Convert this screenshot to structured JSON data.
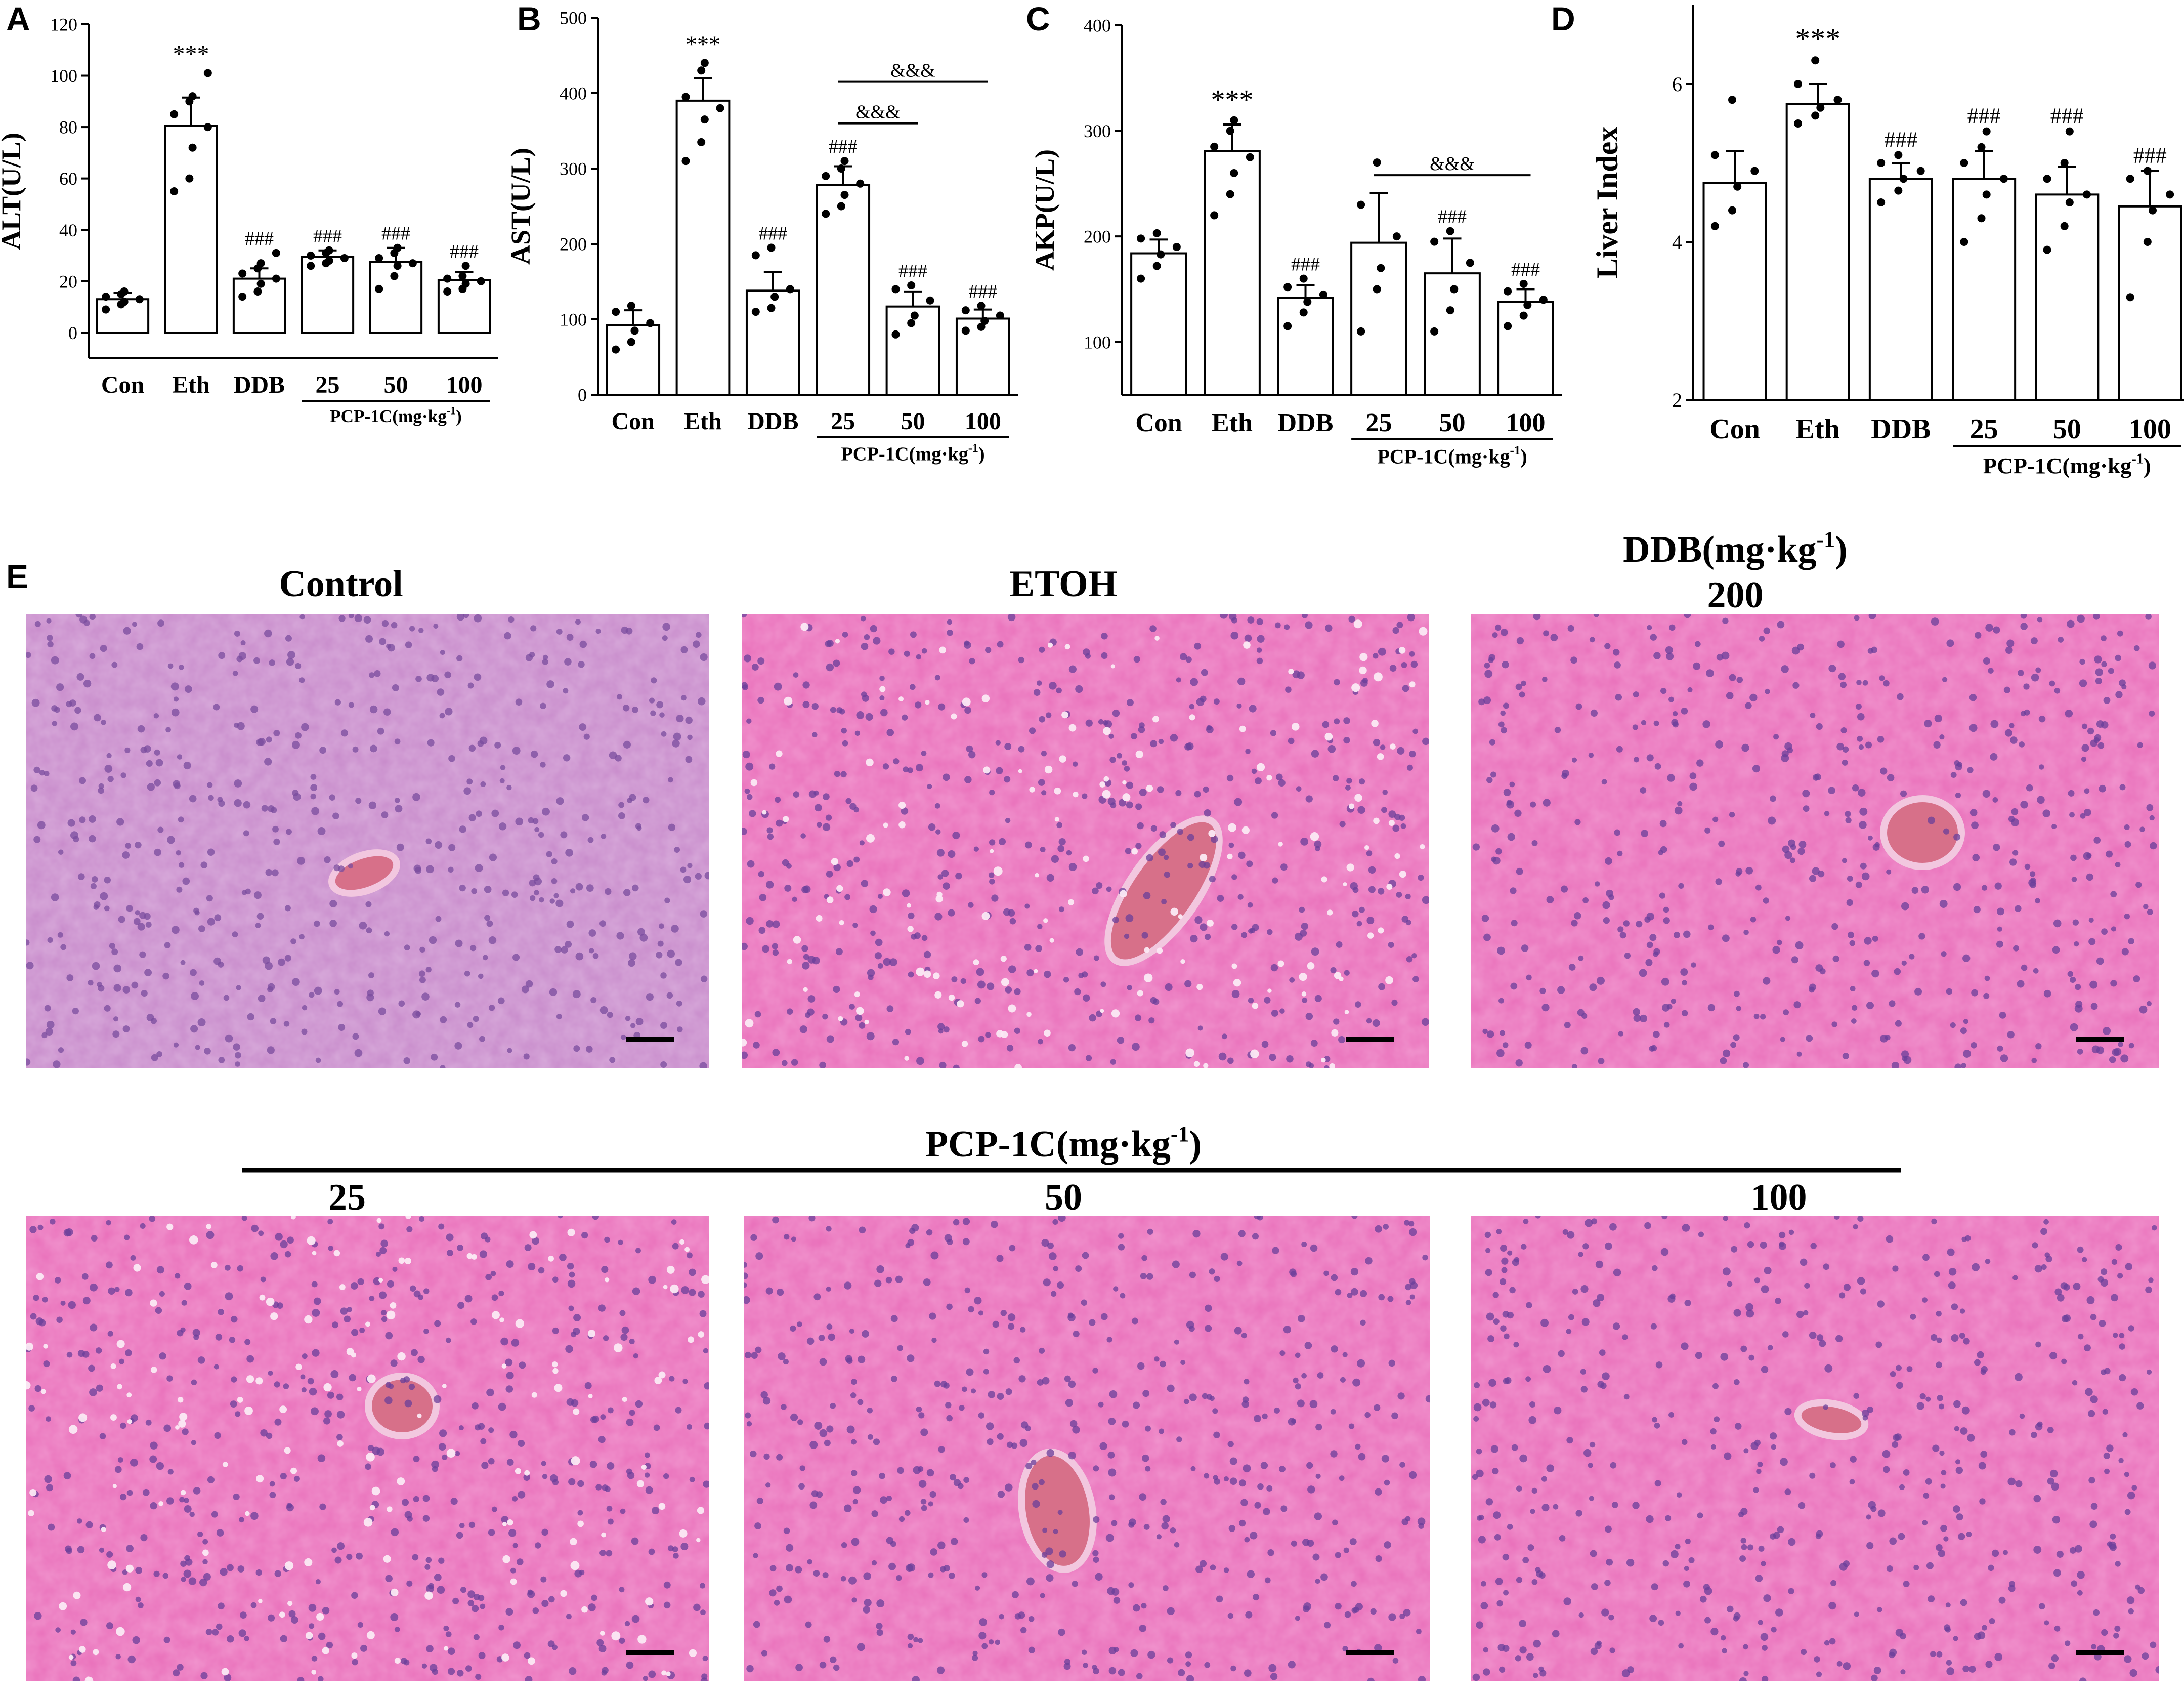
{
  "colors": {
    "bar_fill": "#ffffff",
    "stroke": "#000000",
    "he_pink": "#e96fba",
    "he_lilac": "#c88bcb",
    "nucleus": "#6a3f9a",
    "congestion": "#d2607a"
  },
  "chart_data": [
    {
      "panel": "A",
      "type": "bar",
      "ylabel": "ALT(U/L)",
      "ylim": [
        -10,
        120
      ],
      "yticks": [
        0,
        20,
        40,
        60,
        80,
        100,
        120
      ],
      "categories": [
        "Con",
        "Eth",
        "DDB",
        "25",
        "50",
        "100"
      ],
      "group_label": "PCP-1C(mg·kg",
      "group_label_sup": "-1",
      "group_label_end": ")",
      "values": [
        13,
        80.5,
        21,
        29.5,
        27.5,
        20.5
      ],
      "errors": [
        2.5,
        11,
        4,
        2.5,
        5.5,
        3
      ],
      "points": [
        [
          9,
          11,
          12,
          13,
          14,
          15,
          16
        ],
        [
          55,
          60,
          72,
          80,
          85,
          90,
          92,
          101
        ],
        [
          14,
          16,
          19,
          21,
          23,
          25,
          27,
          31
        ],
        [
          26,
          27,
          28,
          29,
          30,
          31,
          32
        ],
        [
          17,
          22,
          26,
          27,
          29,
          31,
          33
        ],
        [
          16,
          17,
          19,
          20,
          21,
          22,
          26
        ]
      ],
      "annotations": [
        {
          "category": 1,
          "text": "***"
        },
        {
          "category": 2,
          "text": "###"
        },
        {
          "category": 3,
          "text": "###"
        },
        {
          "category": 4,
          "text": "###"
        },
        {
          "category": 5,
          "text": "###"
        }
      ],
      "brackets": []
    },
    {
      "panel": "B",
      "type": "bar",
      "ylabel": "AST(U/L)",
      "ylim": [
        0,
        500
      ],
      "yticks": [
        0,
        100,
        200,
        300,
        400,
        500
      ],
      "categories": [
        "Con",
        "Eth",
        "DDB",
        "25",
        "50",
        "100"
      ],
      "group_label": "PCP-1C(mg·kg",
      "group_label_sup": "-1",
      "group_label_end": ")",
      "values": [
        92,
        390,
        138,
        278,
        117,
        101
      ],
      "errors": [
        20,
        30,
        25,
        25,
        20,
        12
      ],
      "points": [
        [
          60,
          70,
          85,
          95,
          110,
          118
        ],
        [
          310,
          335,
          365,
          380,
          395,
          430,
          440
        ],
        [
          110,
          115,
          130,
          140,
          185,
          195
        ],
        [
          240,
          250,
          265,
          280,
          290,
          300,
          310
        ],
        [
          80,
          95,
          105,
          125,
          140,
          145
        ],
        [
          85,
          90,
          98,
          105,
          112,
          118
        ]
      ],
      "annotations": [
        {
          "category": 1,
          "text": "***"
        },
        {
          "category": 2,
          "text": "###"
        },
        {
          "category": 3,
          "text": "###"
        },
        {
          "category": 4,
          "text": "###"
        },
        {
          "category": 5,
          "text": "###"
        }
      ],
      "brackets": [
        {
          "from": 3,
          "to": 4,
          "y": 360,
          "text": "&&&"
        },
        {
          "from": 3,
          "to": 5,
          "y": 415,
          "text": "&&&"
        }
      ]
    },
    {
      "panel": "C",
      "type": "bar",
      "ylabel": "AKP(U/L)",
      "ylim": [
        50,
        400
      ],
      "yticks": [
        100,
        200,
        300,
        400
      ],
      "categories": [
        "Con",
        "Eth",
        "DDB",
        "25",
        "50",
        "100"
      ],
      "group_label": "PCP-1C(mg·kg",
      "group_label_sup": "-1",
      "group_label_end": ")",
      "values": [
        184,
        281,
        142,
        194,
        165,
        138
      ],
      "errors": [
        13,
        25,
        12,
        47,
        33,
        12
      ],
      "points": [
        [
          160,
          172,
          183,
          190,
          198,
          203
        ],
        [
          220,
          240,
          260,
          275,
          285,
          300,
          310
        ],
        [
          115,
          128,
          138,
          145,
          152,
          160
        ],
        [
          110,
          150,
          170,
          200,
          230,
          270
        ],
        [
          110,
          130,
          150,
          175,
          195,
          205
        ],
        [
          115,
          125,
          135,
          140,
          148,
          155
        ]
      ],
      "annotations": [
        {
          "category": 1,
          "text": "***"
        },
        {
          "category": 2,
          "text": "###"
        },
        {
          "category": 4,
          "text": "###"
        },
        {
          "category": 5,
          "text": "###"
        }
      ],
      "brackets": [
        {
          "from": 3,
          "to": 5,
          "y": 258,
          "text": "&&&"
        }
      ]
    },
    {
      "panel": "D",
      "type": "bar",
      "ylabel": "Liver Index",
      "ylim": [
        2,
        7
      ],
      "yticks": [
        2,
        4,
        6
      ],
      "categories": [
        "Con",
        "Eth",
        "DDB",
        "25",
        "50",
        "100"
      ],
      "group_label": "PCP-1C(mg·kg",
      "group_label_sup": "-1",
      "group_label_end": ")",
      "values": [
        4.75,
        5.75,
        4.8,
        4.8,
        4.6,
        4.45
      ],
      "errors": [
        0.4,
        0.25,
        0.2,
        0.35,
        0.35,
        0.45
      ],
      "points": [
        [
          4.2,
          4.4,
          4.7,
          4.9,
          5.1,
          5.8
        ],
        [
          5.5,
          5.6,
          5.7,
          5.8,
          6.0,
          6.3
        ],
        [
          4.5,
          4.65,
          4.8,
          4.9,
          5.0,
          5.1
        ],
        [
          4.0,
          4.3,
          4.6,
          4.8,
          5.0,
          5.2,
          5.4
        ],
        [
          3.9,
          4.2,
          4.5,
          4.6,
          4.8,
          5.0,
          5.4
        ],
        [
          3.3,
          4.0,
          4.4,
          4.6,
          4.8,
          4.9
        ]
      ],
      "annotations": [
        {
          "category": 1,
          "text": "***"
        },
        {
          "category": 2,
          "text": "###"
        },
        {
          "category": 3,
          "text": "###"
        },
        {
          "category": 4,
          "text": "###"
        },
        {
          "category": 5,
          "text": "###"
        }
      ],
      "brackets": []
    }
  ],
  "histology": {
    "panel": "E",
    "titles": {
      "control": "Control",
      "etoh": "ETOH",
      "ddb_line1": "DDB(mg·kg",
      "ddb_sup": "-1",
      "ddb_end": ")",
      "ddb_line2": "200",
      "pcp_group": "PCP-1C(mg·kg",
      "pcp_sup": "-1",
      "pcp_end": ")",
      "dose_25": "25",
      "dose_50": "50",
      "dose_100": "100"
    }
  }
}
